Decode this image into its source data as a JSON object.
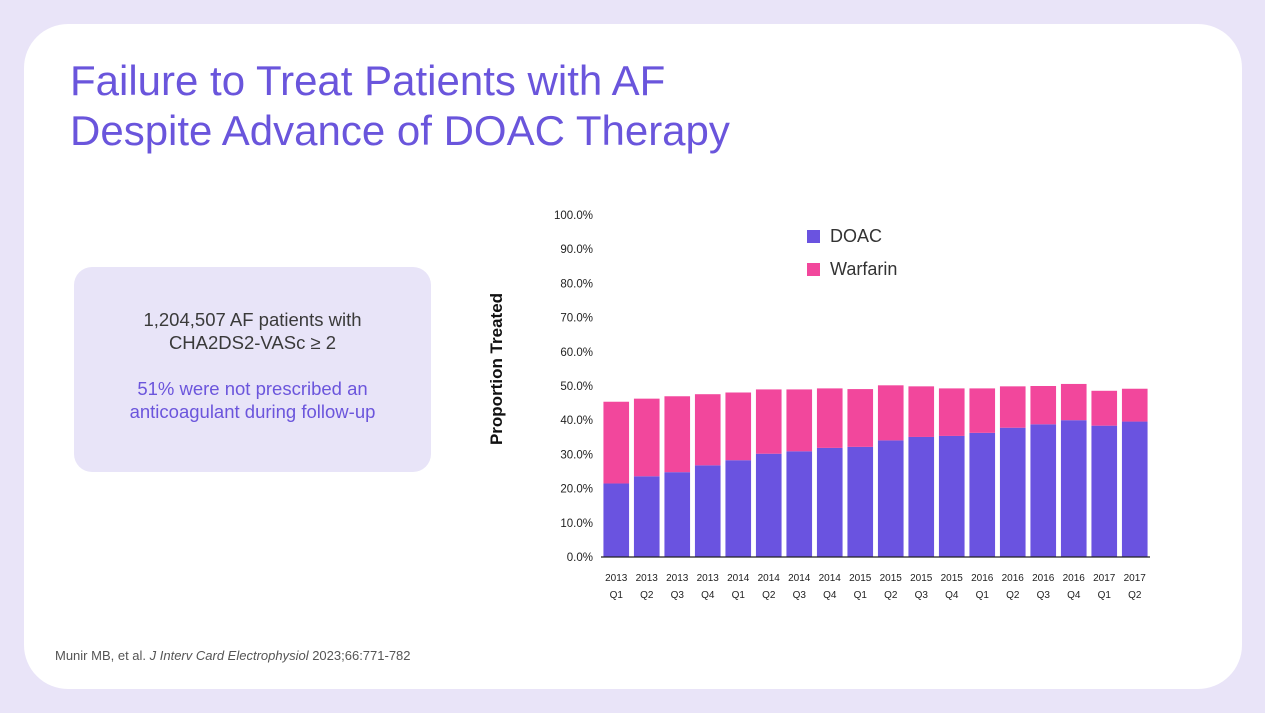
{
  "slide": {
    "title_line1": "Failure to Treat Patients with AF",
    "title_line2": "Despite Advance of DOAC Therapy"
  },
  "infobox": {
    "line1": "1,204,507 AF patients with",
    "line2": "CHA2DS2-VASc ≥ 2",
    "line3": "51% were not prescribed an",
    "line4": "anticoagulant during follow-up"
  },
  "citation": {
    "authors": "Munir MB, et al. ",
    "journal": "J Interv Card Electrophysiol",
    "rest": " 2023;66:771-782"
  },
  "colors": {
    "accent": "#6a55dc",
    "doac": "#6a53e0",
    "warfarin": "#f2479c"
  },
  "chart_data": {
    "type": "bar",
    "stacked": true,
    "ylabel": "Proportion Treated",
    "xlabel": "",
    "ylim": [
      0,
      100
    ],
    "yticks": [
      "0.0%",
      "10.0%",
      "20.0%",
      "30.0%",
      "40.0%",
      "50.0%",
      "60.0%",
      "70.0%",
      "80.0%",
      "90.0%",
      "100.0%"
    ],
    "legend_position": "top-right",
    "categories": [
      [
        "2013",
        "Q1"
      ],
      [
        "2013",
        "Q2"
      ],
      [
        "2013",
        "Q3"
      ],
      [
        "2013",
        "Q4"
      ],
      [
        "2014",
        "Q1"
      ],
      [
        "2014",
        "Q2"
      ],
      [
        "2014",
        "Q3"
      ],
      [
        "2014",
        "Q4"
      ],
      [
        "2015",
        "Q1"
      ],
      [
        "2015",
        "Q2"
      ],
      [
        "2015",
        "Q3"
      ],
      [
        "2015",
        "Q4"
      ],
      [
        "2016",
        "Q1"
      ],
      [
        "2016",
        "Q2"
      ],
      [
        "2016",
        "Q3"
      ],
      [
        "2016",
        "Q4"
      ],
      [
        "2017",
        "Q1"
      ],
      [
        "2017",
        "Q2"
      ]
    ],
    "series": [
      {
        "name": "DOAC",
        "color": "#6a53e0",
        "values": [
          21.5,
          23.6,
          24.8,
          26.8,
          28.3,
          30.2,
          30.9,
          31.9,
          32.2,
          34.1,
          35.1,
          35.4,
          36.3,
          37.8,
          38.8,
          40.0,
          38.4,
          39.6
        ]
      },
      {
        "name": "Warfarin",
        "color": "#f2479c",
        "values": [
          23.9,
          22.7,
          22.2,
          20.8,
          19.8,
          18.8,
          18.1,
          17.4,
          16.9,
          16.1,
          14.8,
          13.9,
          13.0,
          12.1,
          11.2,
          10.6,
          10.2,
          9.6
        ]
      }
    ]
  }
}
